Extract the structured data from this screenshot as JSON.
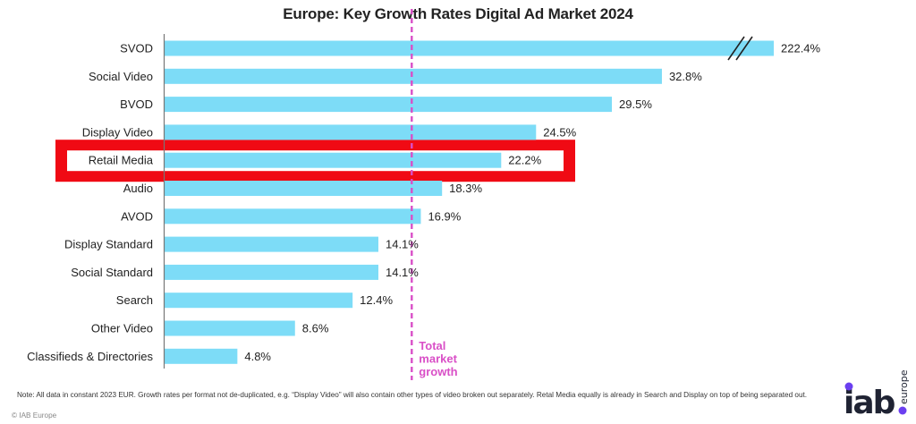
{
  "chart_data": {
    "type": "bar",
    "orientation": "horizontal",
    "title": "Europe: Key Growth Rates Digital Ad Market 2024",
    "xlabel": "",
    "ylabel": "",
    "categories": [
      "SVOD",
      "Social Video",
      "BVOD",
      "Display Video",
      "Retail Media",
      "Audio",
      "AVOD",
      "Display Standard",
      "Social Standard",
      "Search",
      "Other Video",
      "Classifieds & Directories"
    ],
    "values": [
      222.4,
      32.8,
      29.5,
      24.5,
      22.2,
      18.3,
      16.9,
      14.1,
      14.1,
      12.4,
      8.6,
      4.8
    ],
    "value_labels": [
      "222.4%",
      "32.8%",
      "29.5%",
      "24.5%",
      "22.2%",
      "18.3%",
      "16.9%",
      "14.1%",
      "14.1%",
      "12.4%",
      "8.6%",
      "4.8%"
    ],
    "unit": "%",
    "axis_break": {
      "category": "SVOD",
      "note": "bar truncated with axis break marks"
    },
    "reference_line": {
      "label_lines": [
        "Total",
        "market",
        "growth"
      ],
      "value": 16.3,
      "style": "dashed",
      "color": "#d94fc7"
    },
    "highlight": {
      "category": "Retail Media",
      "color": "#f00a14"
    },
    "bar_color": "#7ddcf7",
    "xlim": [
      0,
      40
    ],
    "grid": false,
    "legend": "none"
  },
  "footer": {
    "note": "Note: All data in constant 2023 EUR. Growth rates per format not de-duplicated, e.g. “Display Video” will also contain other types of video broken out separately. Retal Media equally is already in Search and Display on top of being separated out.",
    "copyright": "© IAB Europe"
  },
  "logo": {
    "main": "iab",
    "sub": "europe",
    "dot_color": "#6b3ff0",
    "text_color": "#1f2333"
  }
}
